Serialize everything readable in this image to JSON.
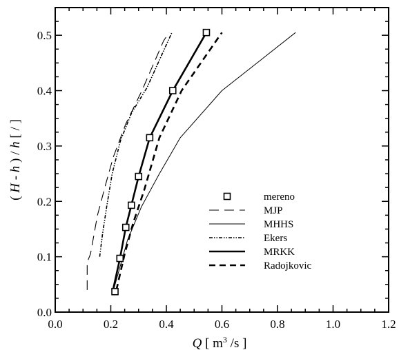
{
  "chart_data": {
    "type": "line",
    "title": "",
    "xlabel": {
      "italic": "Q",
      "open": " [ m",
      "sup": "3",
      "close": " /s ]"
    },
    "ylabel": {
      "parts": [
        "( ",
        "H",
        " - ",
        "h",
        " ) / ",
        "h",
        "  [ / ]"
      ]
    },
    "xlim": [
      0.0,
      1.2
    ],
    "ylim": [
      0.0,
      0.55
    ],
    "xticks": [
      0.0,
      0.2,
      0.4,
      0.6,
      0.8,
      1.0,
      1.2
    ],
    "xtick_labels": [
      "0.0",
      "0.2",
      "0.4",
      "0.6",
      "0.8",
      "1.0",
      "1.2"
    ],
    "yticks": [
      0.0,
      0.1,
      0.2,
      0.3,
      0.4,
      0.5
    ],
    "ytick_labels": [
      "0.0",
      "0.1",
      "0.2",
      "0.3",
      "0.4",
      "0.5"
    ],
    "grid": false,
    "legend_position": "lower-right",
    "series": [
      {
        "name": "mereno",
        "style": "marker",
        "x": [
          0.215,
          0.233,
          0.254,
          0.274,
          0.3,
          0.34,
          0.423,
          0.544
        ],
        "y": [
          0.037,
          0.097,
          0.153,
          0.193,
          0.245,
          0.315,
          0.4,
          0.505
        ]
      },
      {
        "name": "MJP",
        "style": "long-dash",
        "x": [
          0.115,
          0.115,
          0.127,
          0.152,
          0.181,
          0.209,
          0.254,
          0.312,
          0.39,
          0.41
        ],
        "y": [
          0.04,
          0.09,
          0.105,
          0.175,
          0.23,
          0.28,
          0.34,
          0.4,
          0.49,
          0.505
        ]
      },
      {
        "name": "MHHS",
        "style": "thin",
        "x": [
          0.21,
          0.26,
          0.31,
          0.375,
          0.45,
          0.6,
          0.865
        ],
        "y": [
          0.04,
          0.13,
          0.19,
          0.25,
          0.315,
          0.4,
          0.505
        ]
      },
      {
        "name": "Ekers",
        "style": "dash-dot-dot",
        "x": [
          0.16,
          0.17,
          0.185,
          0.205,
          0.235,
          0.275,
          0.33,
          0.375,
          0.42
        ],
        "y": [
          0.1,
          0.14,
          0.19,
          0.25,
          0.31,
          0.36,
          0.405,
          0.455,
          0.505
        ]
      },
      {
        "name": "MRKK",
        "style": "thick",
        "x": [
          0.208,
          0.233,
          0.254,
          0.274,
          0.3,
          0.34,
          0.423,
          0.544
        ],
        "y": [
          0.04,
          0.097,
          0.153,
          0.193,
          0.245,
          0.315,
          0.4,
          0.505
        ]
      },
      {
        "name": "Radojkovic",
        "style": "thick-dash",
        "x": [
          0.22,
          0.25,
          0.28,
          0.32,
          0.375,
          0.455,
          0.6
        ],
        "y": [
          0.04,
          0.105,
          0.16,
          0.22,
          0.315,
          0.4,
          0.505
        ]
      }
    ]
  }
}
